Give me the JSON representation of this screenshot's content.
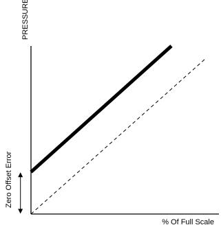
{
  "chart_data": {
    "type": "line",
    "title": "",
    "xlabel": "% Of Full Scale",
    "ylabel": "PRESSURE",
    "annotation": "Zero Offset Error",
    "xlim": [
      0,
      100
    ],
    "ylim": [
      0,
      100
    ],
    "grid": false,
    "axis_ticks": false,
    "series": [
      {
        "style": "solid-thick",
        "color": "#000000",
        "x": [
          0,
          80
        ],
        "y": [
          25,
          100
        ]
      },
      {
        "style": "dashed-thin",
        "color": "#000000",
        "x": [
          0,
          100
        ],
        "y": [
          0,
          93
        ]
      }
    ],
    "annotation_arrow": {
      "x": -6,
      "y_from": 0,
      "y_to": 25
    }
  }
}
